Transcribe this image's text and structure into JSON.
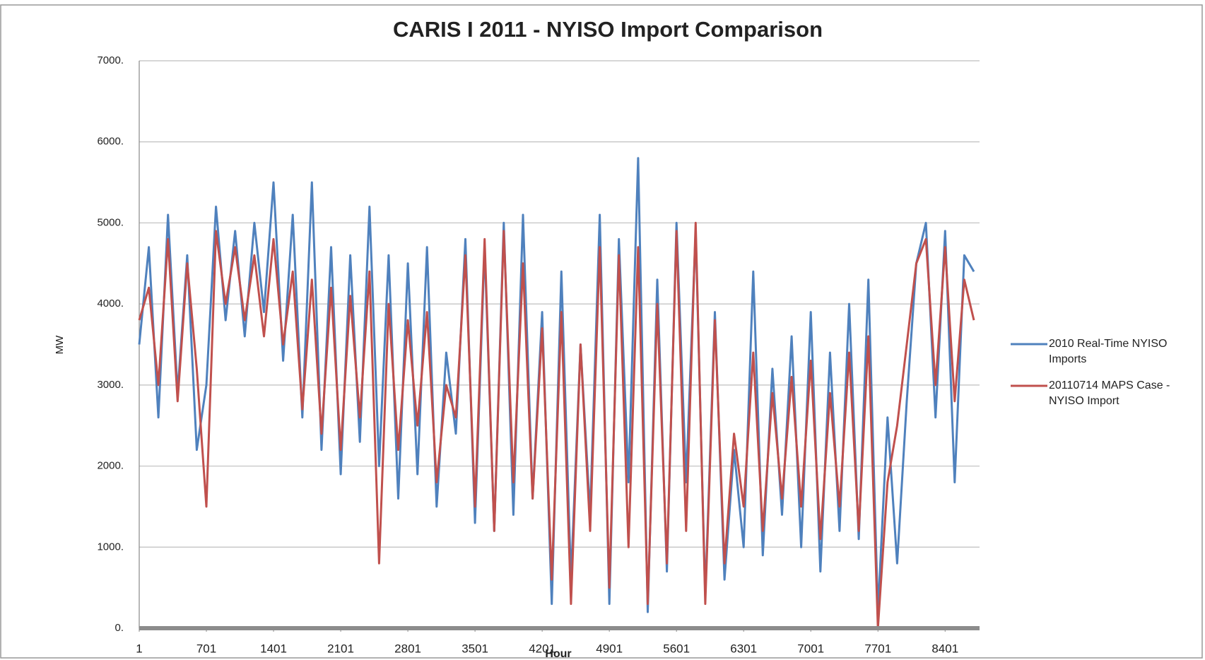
{
  "chart_data": {
    "type": "line",
    "title": "CARIS I 2011 - NYISO Import Comparison",
    "x_label": "Hour",
    "y_label": "MW",
    "x": [
      1,
      101,
      201,
      301,
      401,
      501,
      601,
      701,
      801,
      901,
      1001,
      1101,
      1201,
      1301,
      1401,
      1501,
      1601,
      1701,
      1801,
      1901,
      2001,
      2101,
      2201,
      2301,
      2401,
      2501,
      2601,
      2701,
      2801,
      2901,
      3001,
      3101,
      3201,
      3301,
      3401,
      3501,
      3601,
      3701,
      3801,
      3901,
      4001,
      4101,
      4201,
      4301,
      4401,
      4501,
      4601,
      4701,
      4801,
      4901,
      5001,
      5101,
      5201,
      5301,
      5401,
      5501,
      5601,
      5701,
      5801,
      5901,
      6001,
      6101,
      6201,
      6301,
      6401,
      6501,
      6601,
      6701,
      6801,
      6901,
      7001,
      7101,
      7201,
      7301,
      7401,
      7501,
      7601,
      7701,
      7801,
      7901,
      8001,
      8101,
      8201,
      8301,
      8401,
      8501,
      8601,
      8701
    ],
    "series": [
      {
        "name": "2010 Real-Time NYISO Imports",
        "color": "#4f81bd",
        "values": [
          3500,
          4700,
          2600,
          5100,
          2900,
          4600,
          2200,
          3000,
          5200,
          3800,
          4900,
          3600,
          5000,
          3900,
          5500,
          3300,
          5100,
          2600,
          5500,
          2200,
          4700,
          1900,
          4600,
          2300,
          5200,
          2000,
          4600,
          1600,
          4500,
          1900,
          4700,
          1500,
          3400,
          2400,
          4800,
          1300,
          4700,
          1200,
          5000,
          1400,
          5100,
          1600,
          3900,
          300,
          4400,
          600,
          3500,
          1400,
          5100,
          300,
          4800,
          1800,
          5800,
          200,
          4300,
          700,
          5000,
          1800,
          4900,
          400,
          3900,
          600,
          2200,
          1000,
          4400,
          900,
          3200,
          1400,
          3600,
          1000,
          3900,
          700,
          3400,
          1200,
          4000,
          1100,
          4300,
          200,
          2600,
          800,
          2800,
          4500,
          5000,
          2600,
          4900,
          1800,
          4600,
          4400
        ]
      },
      {
        "name": "20110714 MAPS Case - NYISO Import",
        "color": "#c0504d",
        "values": [
          3800,
          4200,
          3000,
          4800,
          2800,
          4500,
          3200,
          1500,
          4900,
          4000,
          4700,
          3800,
          4600,
          3600,
          4800,
          3500,
          4400,
          2700,
          4300,
          2400,
          4200,
          2200,
          4100,
          2600,
          4400,
          800,
          4000,
          2200,
          3800,
          2500,
          3900,
          1800,
          3000,
          2600,
          4600,
          1500,
          4800,
          1200,
          4900,
          1800,
          4500,
          1600,
          3700,
          600,
          3900,
          300,
          3500,
          1200,
          4700,
          500,
          4600,
          1000,
          4700,
          300,
          4000,
          800,
          4900,
          1200,
          5000,
          300,
          3800,
          800,
          2400,
          1500,
          3400,
          1200,
          2900,
          1600,
          3100,
          1500,
          3300,
          1100,
          2900,
          1500,
          3400,
          1200,
          3600,
          0,
          1800,
          2500,
          3500,
          4500,
          4800,
          3000,
          4700,
          2800,
          4300,
          3800
        ]
      }
    ],
    "xlim": [
      1,
      8760
    ],
    "xticks": [
      1,
      701,
      1401,
      2101,
      2801,
      3501,
      4201,
      4901,
      5601,
      6301,
      7001,
      7701,
      8401
    ],
    "ylim": [
      0,
      7000
    ],
    "yticks": [
      {
        "value": 0,
        "label": "0."
      },
      {
        "value": 1000,
        "label": "1000."
      },
      {
        "value": 2000,
        "label": "2000."
      },
      {
        "value": 3000,
        "label": "3000."
      },
      {
        "value": 4000,
        "label": "4000."
      },
      {
        "value": 5000,
        "label": "5000."
      },
      {
        "value": 6000,
        "label": "6000."
      },
      {
        "value": 7000,
        "label": "7000."
      }
    ],
    "grid": true,
    "legend": "right"
  }
}
